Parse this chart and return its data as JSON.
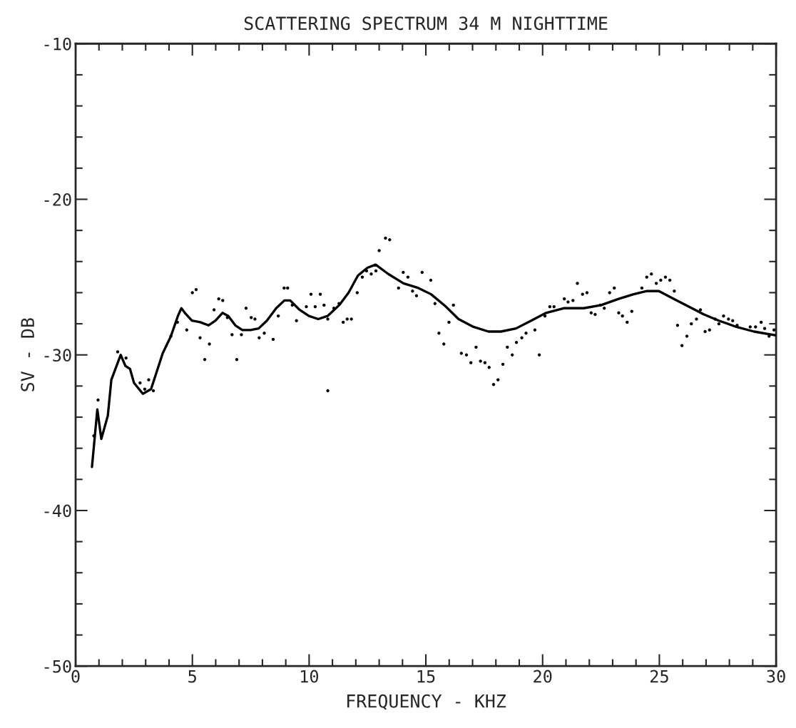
{
  "chart_data": {
    "type": "line",
    "title": "SCATTERING SPECTRUM 34 M NIGHTTIME",
    "xlabel": "FREQUENCY - KHZ",
    "ylabel": "SV - DB",
    "xlim": [
      0,
      30
    ],
    "ylim": [
      -50,
      -10
    ],
    "xticks": [
      0,
      {
        "value": 1,
        "label": null
      },
      {
        "value": 2,
        "label": null
      },
      {
        "value": 3,
        "label": null
      },
      {
        "value": 4,
        "label": null
      },
      5,
      {
        "value": 6,
        "label": null
      },
      {
        "value": 7,
        "label": null
      },
      {
        "value": 8,
        "label": null
      },
      {
        "value": 9,
        "label": null
      },
      10,
      {
        "value": 11,
        "label": null
      },
      {
        "value": 12,
        "label": null
      },
      {
        "value": 13,
        "label": null
      },
      {
        "value": 14,
        "label": null
      },
      15,
      {
        "value": 16,
        "label": null
      },
      {
        "value": 17,
        "label": null
      },
      {
        "value": 18,
        "label": null
      },
      {
        "value": 19,
        "label": null
      },
      20,
      {
        "value": 21,
        "label": null
      },
      {
        "value": 22,
        "label": null
      },
      {
        "value": 23,
        "label": null
      },
      {
        "value": 24,
        "label": null
      },
      25,
      {
        "value": 26,
        "label": null
      },
      {
        "value": 27,
        "label": null
      },
      {
        "value": 28,
        "label": null
      },
      {
        "value": 29,
        "label": null
      },
      30
    ],
    "yticks": [
      -50,
      {
        "value": -48,
        "label": null
      },
      {
        "value": -46,
        "label": null
      },
      {
        "value": -44,
        "label": null
      },
      {
        "value": -42,
        "label": null
      },
      -40,
      {
        "value": -38,
        "label": null
      },
      {
        "value": -36,
        "label": null
      },
      {
        "value": -34,
        "label": null
      },
      {
        "value": -32,
        "label": null
      },
      -30,
      {
        "value": -28,
        "label": null
      },
      {
        "value": -26,
        "label": null
      },
      {
        "value": -24,
        "label": null
      },
      {
        "value": -22,
        "label": null
      },
      -20,
      {
        "value": -18,
        "label": null
      },
      {
        "value": -16,
        "label": null
      },
      {
        "value": -14,
        "label": null
      },
      {
        "value": -12,
        "label": null
      },
      -10
    ],
    "grid": false,
    "series": [
      {
        "type": "scatter",
        "marker": "circle",
        "color": "#000000",
        "x": [
          0.78,
          0.96,
          1.8,
          2.16,
          2.76,
          2.96,
          3.13,
          3.33,
          4.08,
          4.36,
          4.76,
          5.0,
          5.16,
          5.33,
          5.53,
          5.73,
          5.93,
          6.13,
          6.3,
          6.5,
          6.7,
          6.9,
          7.1,
          7.3,
          7.52,
          7.68,
          7.86,
          8.08,
          8.46,
          8.68,
          8.93,
          9.08,
          9.28,
          9.46,
          9.88,
          10.08,
          10.26,
          10.48,
          10.64,
          10.8,
          10.8,
          11.06,
          11.28,
          11.46,
          11.63,
          11.81,
          12.06,
          12.28,
          12.46,
          12.66,
          12.86,
          13.0,
          13.27,
          13.45,
          13.83,
          14.03,
          14.23,
          14.43,
          14.6,
          14.84,
          15.21,
          15.39,
          15.56,
          15.77,
          15.99,
          16.18,
          16.52,
          16.74,
          16.93,
          17.15,
          17.34,
          17.53,
          17.71,
          17.9,
          18.09,
          18.3,
          18.49,
          18.7,
          18.88,
          19.11,
          19.29,
          19.67,
          19.86,
          20.1,
          20.31,
          20.49,
          20.93,
          21.09,
          21.3,
          21.49,
          21.71,
          21.9,
          22.08,
          22.25,
          22.47,
          22.64,
          22.87,
          23.07,
          23.26,
          23.42,
          23.62,
          23.82,
          24.25,
          24.46,
          24.66,
          24.87,
          25.06,
          25.26,
          25.45,
          25.64,
          25.78,
          25.97,
          26.18,
          26.37,
          26.59,
          26.76,
          26.96,
          27.15,
          27.39,
          27.55,
          27.75,
          27.96,
          28.14,
          28.33,
          28.89,
          29.12,
          29.36,
          29.51,
          29.7,
          29.91
        ],
        "values": [
          -35.2,
          -32.9,
          -29.8,
          -30.2,
          -31.8,
          -32.2,
          -31.6,
          -32.3,
          -28.8,
          -27.9,
          -28.4,
          -26.0,
          -25.8,
          -28.9,
          -30.3,
          -29.3,
          -27.1,
          -26.4,
          -26.5,
          -27.6,
          -28.7,
          -30.3,
          -28.7,
          -27.0,
          -27.6,
          -27.7,
          -28.9,
          -28.6,
          -29.0,
          -27.5,
          -25.7,
          -25.7,
          -26.8,
          -27.8,
          -26.9,
          -26.1,
          -26.9,
          -26.1,
          -26.8,
          -27.7,
          -32.3,
          -27.0,
          -26.7,
          -27.9,
          -27.7,
          -27.7,
          -26.0,
          -25.0,
          -24.6,
          -24.8,
          -24.6,
          -23.3,
          -22.5,
          -22.6,
          -25.7,
          -24.7,
          -25.0,
          -25.9,
          -26.2,
          -24.7,
          -25.2,
          -26.7,
          -28.6,
          -29.3,
          -27.9,
          -26.8,
          -29.9,
          -30.0,
          -30.5,
          -29.5,
          -30.4,
          -30.5,
          -30.8,
          -31.9,
          -31.6,
          -30.6,
          -29.5,
          -30.0,
          -29.2,
          -28.9,
          -28.6,
          -28.4,
          -30.0,
          -27.5,
          -26.9,
          -26.9,
          -26.4,
          -26.6,
          -26.5,
          -25.4,
          -26.1,
          -26.0,
          -27.3,
          -27.4,
          -26.8,
          -27.0,
          -26.0,
          -25.7,
          -27.3,
          -27.5,
          -27.9,
          -27.2,
          -25.7,
          -25.0,
          -24.8,
          -25.4,
          -25.2,
          -25.0,
          -25.2,
          -25.9,
          -28.1,
          -29.4,
          -28.8,
          -28.0,
          -27.7,
          -27.1,
          -28.5,
          -28.4,
          -27.7,
          -28.0,
          -27.5,
          -27.7,
          -27.8,
          -28.1,
          -28.2,
          -28.2,
          -27.9,
          -28.3,
          -28.8,
          -28.4
        ]
      },
      {
        "marker": "none",
        "line_style": "solid",
        "color": "#000000",
        "x": [
          0.7,
          0.93,
          1.1,
          1.38,
          1.53,
          1.93,
          2.13,
          2.33,
          2.5,
          2.88,
          3.23,
          3.73,
          4.08,
          4.38,
          4.53,
          4.68,
          4.98,
          5.34,
          5.69,
          5.99,
          6.29,
          6.54,
          6.84,
          7.14,
          7.49,
          7.84,
          8.19,
          8.59,
          8.94,
          9.19,
          9.59,
          9.99,
          10.39,
          10.79,
          11.29,
          11.69,
          12.09,
          12.5,
          12.85,
          13.39,
          14.04,
          14.68,
          15.22,
          15.86,
          16.4,
          17.04,
          17.68,
          18.22,
          18.86,
          19.51,
          20.15,
          20.9,
          21.76,
          22.51,
          23.26,
          23.9,
          24.44,
          24.98,
          25.62,
          26.26,
          26.91,
          27.55,
          28.3,
          29.05,
          30.0
        ],
        "values": [
          -37.2,
          -33.5,
          -35.4,
          -33.9,
          -31.6,
          -30.0,
          -30.7,
          -30.9,
          -31.8,
          -32.5,
          -32.2,
          -29.9,
          -28.8,
          -27.5,
          -27.0,
          -27.3,
          -27.8,
          -27.9,
          -28.1,
          -27.8,
          -27.3,
          -27.5,
          -28.1,
          -28.4,
          -28.4,
          -28.3,
          -27.8,
          -27.0,
          -26.5,
          -26.5,
          -27.1,
          -27.5,
          -27.7,
          -27.5,
          -26.8,
          -26.0,
          -24.9,
          -24.4,
          -24.2,
          -24.8,
          -25.4,
          -25.7,
          -26.1,
          -26.9,
          -27.7,
          -28.2,
          -28.5,
          -28.5,
          -28.3,
          -27.8,
          -27.3,
          -27.0,
          -27.0,
          -26.8,
          -26.4,
          -26.1,
          -25.9,
          -25.9,
          -26.4,
          -26.9,
          -27.4,
          -27.8,
          -28.2,
          -28.5,
          -28.75
        ]
      }
    ]
  }
}
